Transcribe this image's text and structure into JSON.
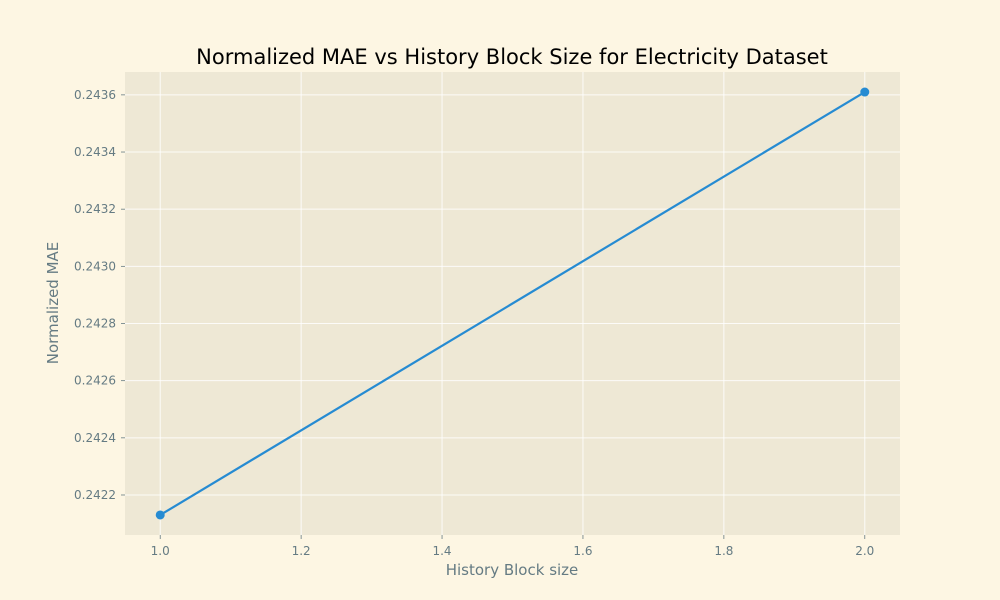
{
  "colors": {
    "figure_background": "#fdf6e3",
    "plot_background": "#eee8d5",
    "grid": "#ffffff",
    "text": "#657b83",
    "title": "#000000",
    "series": "#268bd2"
  },
  "chart_data": {
    "type": "line",
    "title": "Normalized MAE vs History Block Size for Electricity Dataset",
    "xlabel": "History Block size",
    "ylabel": "Normalized MAE",
    "xlim": [
      0.95,
      2.05
    ],
    "ylim": [
      0.24206,
      0.24368
    ],
    "grid": true,
    "legend": "none",
    "x_ticks": [
      1.0,
      1.2,
      1.4,
      1.6,
      1.8,
      2.0
    ],
    "x_tick_labels": [
      "1.0",
      "1.2",
      "1.4",
      "1.6",
      "1.8",
      "2.0"
    ],
    "y_ticks": [
      0.2422,
      0.2424,
      0.2426,
      0.2428,
      0.243,
      0.2432,
      0.2434,
      0.2436
    ],
    "y_tick_labels": [
      "0.2422",
      "0.2424",
      "0.2426",
      "0.2428",
      "0.2430",
      "0.2432",
      "0.2434",
      "0.2436"
    ],
    "series": [
      {
        "x": [
          1,
          2
        ],
        "y": [
          0.24213,
          0.24361
        ],
        "marker": "circle",
        "color": "#268bd2"
      }
    ]
  }
}
